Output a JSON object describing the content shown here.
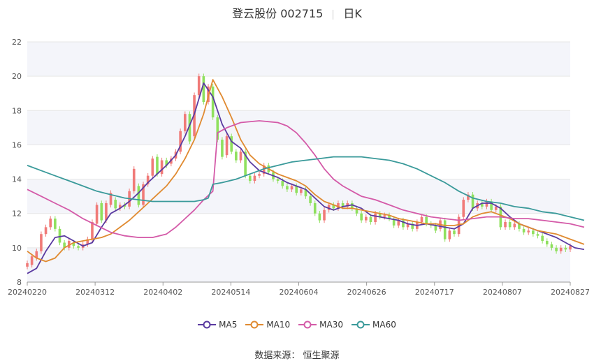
{
  "header": {
    "title": "登云股份 002715",
    "period": "日K"
  },
  "source": "数据来源： 恒生聚源",
  "chart_data": {
    "type": "candlestick",
    "ylim": [
      8,
      22
    ],
    "yticks": [
      8,
      10,
      12,
      14,
      16,
      18,
      20,
      22
    ],
    "xticks": [
      "20240220",
      "20240312",
      "20240402",
      "20240514",
      "20240604",
      "20240626",
      "20240717",
      "20240807",
      "20240827"
    ],
    "grid": true,
    "legend_position": "bottom-center",
    "colors": {
      "up": "#f07a78",
      "down": "#8fe05e",
      "MA5": "#5a3aa0",
      "MA10": "#e08a30",
      "MA30": "#d45aa8",
      "MA60": "#3a9a9a"
    },
    "candles": [
      {
        "o": 8.9,
        "c": 9.1
      },
      {
        "o": 9.0,
        "c": 9.5
      },
      {
        "o": 9.4,
        "c": 9.8
      },
      {
        "o": 9.8,
        "c": 10.8
      },
      {
        "o": 10.8,
        "c": 11.2
      },
      {
        "o": 11.2,
        "c": 11.7
      },
      {
        "o": 11.7,
        "c": 11.1
      },
      {
        "o": 11.1,
        "c": 10.3
      },
      {
        "o": 10.3,
        "c": 10.0
      },
      {
        "o": 10.0,
        "c": 10.4
      },
      {
        "o": 10.3,
        "c": 10.1
      },
      {
        "o": 10.1,
        "c": 10.0
      },
      {
        "o": 10.0,
        "c": 10.2
      },
      {
        "o": 10.2,
        "c": 10.5
      },
      {
        "o": 10.5,
        "c": 11.5
      },
      {
        "o": 11.4,
        "c": 12.5
      },
      {
        "o": 12.6,
        "c": 11.6
      },
      {
        "o": 11.6,
        "c": 12.6
      },
      {
        "o": 12.5,
        "c": 13.2
      },
      {
        "o": 12.8,
        "c": 12.3
      },
      {
        "o": 12.3,
        "c": 12.5
      },
      {
        "o": 12.5,
        "c": 12.4
      },
      {
        "o": 12.4,
        "c": 13.3
      },
      {
        "o": 13.3,
        "c": 14.6
      },
      {
        "o": 13.6,
        "c": 12.5
      },
      {
        "o": 12.5,
        "c": 13.7
      },
      {
        "o": 13.7,
        "c": 14.2
      },
      {
        "o": 14.2,
        "c": 15.2
      },
      {
        "o": 15.3,
        "c": 14.3
      },
      {
        "o": 14.3,
        "c": 15.1
      },
      {
        "o": 15.1,
        "c": 14.8
      },
      {
        "o": 14.9,
        "c": 15.2
      },
      {
        "o": 15.2,
        "c": 15.6
      },
      {
        "o": 15.6,
        "c": 16.8
      },
      {
        "o": 16.8,
        "c": 17.8
      },
      {
        "o": 17.8,
        "c": 16.2
      },
      {
        "o": 16.5,
        "c": 18.9
      },
      {
        "o": 18.9,
        "c": 20.0
      },
      {
        "o": 20.0,
        "c": 18.5
      },
      {
        "o": 18.5,
        "c": 19.4
      },
      {
        "o": 19.4,
        "c": 17.6
      },
      {
        "o": 17.6,
        "c": 16.3
      },
      {
        "o": 16.3,
        "c": 15.3
      },
      {
        "o": 15.4,
        "c": 16.5
      },
      {
        "o": 16.5,
        "c": 15.6
      },
      {
        "o": 15.6,
        "c": 15.1
      },
      {
        "o": 15.1,
        "c": 15.6
      },
      {
        "o": 15.6,
        "c": 14.2
      },
      {
        "o": 14.2,
        "c": 13.9
      },
      {
        "o": 13.9,
        "c": 14.2
      },
      {
        "o": 14.2,
        "c": 14.3
      },
      {
        "o": 14.3,
        "c": 14.8
      },
      {
        "o": 14.8,
        "c": 14.4
      },
      {
        "o": 14.4,
        "c": 14.0
      },
      {
        "o": 14.0,
        "c": 13.9
      },
      {
        "o": 13.9,
        "c": 13.6
      },
      {
        "o": 13.6,
        "c": 13.4
      },
      {
        "o": 13.4,
        "c": 13.6
      },
      {
        "o": 13.6,
        "c": 13.2
      },
      {
        "o": 13.2,
        "c": 13.4
      },
      {
        "o": 13.4,
        "c": 13.0
      },
      {
        "o": 13.0,
        "c": 12.6
      },
      {
        "o": 12.6,
        "c": 12.0
      },
      {
        "o": 12.0,
        "c": 11.6
      },
      {
        "o": 11.6,
        "c": 12.2
      },
      {
        "o": 12.2,
        "c": 12.5
      },
      {
        "o": 12.5,
        "c": 12.3
      },
      {
        "o": 12.3,
        "c": 12.6
      },
      {
        "o": 12.6,
        "c": 12.4
      },
      {
        "o": 12.4,
        "c": 12.6
      },
      {
        "o": 12.6,
        "c": 12.3
      },
      {
        "o": 12.3,
        "c": 12.0
      },
      {
        "o": 12.0,
        "c": 11.6
      },
      {
        "o": 11.6,
        "c": 11.8
      },
      {
        "o": 11.8,
        "c": 11.5
      },
      {
        "o": 11.5,
        "c": 12.0
      },
      {
        "o": 12.0,
        "c": 11.8
      },
      {
        "o": 11.8,
        "c": 11.9
      },
      {
        "o": 11.9,
        "c": 11.7
      },
      {
        "o": 11.7,
        "c": 11.3
      },
      {
        "o": 11.3,
        "c": 11.6
      },
      {
        "o": 11.6,
        "c": 11.2
      },
      {
        "o": 11.2,
        "c": 11.4
      },
      {
        "o": 11.4,
        "c": 11.1
      },
      {
        "o": 11.1,
        "c": 11.5
      },
      {
        "o": 11.5,
        "c": 11.8
      },
      {
        "o": 11.8,
        "c": 11.4
      },
      {
        "o": 11.4,
        "c": 11.3
      },
      {
        "o": 11.3,
        "c": 11.0
      },
      {
        "o": 11.1,
        "c": 11.6
      },
      {
        "o": 11.6,
        "c": 10.5
      },
      {
        "o": 10.5,
        "c": 11.0
      },
      {
        "o": 11.0,
        "c": 10.8
      },
      {
        "o": 10.8,
        "c": 11.8
      },
      {
        "o": 11.8,
        "c": 12.8
      },
      {
        "o": 12.8,
        "c": 13.1
      },
      {
        "o": 13.1,
        "c": 12.3
      },
      {
        "o": 12.3,
        "c": 12.6
      },
      {
        "o": 12.6,
        "c": 12.4
      },
      {
        "o": 12.4,
        "c": 12.7
      },
      {
        "o": 12.7,
        "c": 12.2
      },
      {
        "o": 12.2,
        "c": 12.4
      },
      {
        "o": 12.4,
        "c": 11.2
      },
      {
        "o": 11.2,
        "c": 11.5
      },
      {
        "o": 11.5,
        "c": 11.2
      },
      {
        "o": 11.2,
        "c": 11.4
      },
      {
        "o": 11.4,
        "c": 11.1
      },
      {
        "o": 11.1,
        "c": 10.9
      },
      {
        "o": 10.9,
        "c": 11.0
      },
      {
        "o": 11.0,
        "c": 10.8
      },
      {
        "o": 10.8,
        "c": 10.7
      },
      {
        "o": 10.7,
        "c": 10.4
      },
      {
        "o": 10.4,
        "c": 10.2
      },
      {
        "o": 10.2,
        "c": 10.0
      },
      {
        "o": 10.0,
        "c": 9.8
      },
      {
        "o": 9.8,
        "c": 10.0
      },
      {
        "o": 10.0,
        "c": 9.9
      },
      {
        "o": 9.9,
        "c": 10.1
      }
    ],
    "series": [
      {
        "name": "MA5",
        "points": [
          [
            0,
            8.5
          ],
          [
            2,
            8.8
          ],
          [
            4,
            9.8
          ],
          [
            6,
            10.6
          ],
          [
            8,
            10.7
          ],
          [
            10,
            10.4
          ],
          [
            12,
            10.1
          ],
          [
            14,
            10.3
          ],
          [
            16,
            11.2
          ],
          [
            18,
            12.0
          ],
          [
            20,
            12.3
          ],
          [
            22,
            12.7
          ],
          [
            24,
            13.2
          ],
          [
            26,
            13.8
          ],
          [
            28,
            14.3
          ],
          [
            30,
            14.8
          ],
          [
            32,
            15.4
          ],
          [
            34,
            16.5
          ],
          [
            36,
            17.8
          ],
          [
            38,
            19.6
          ],
          [
            40,
            18.8
          ],
          [
            42,
            17.2
          ],
          [
            44,
            16.2
          ],
          [
            46,
            15.8
          ],
          [
            48,
            15.0
          ],
          [
            50,
            14.5
          ],
          [
            52,
            14.3
          ],
          [
            54,
            14.1
          ],
          [
            56,
            13.8
          ],
          [
            58,
            13.6
          ],
          [
            60,
            13.4
          ],
          [
            62,
            12.9
          ],
          [
            64,
            12.4
          ],
          [
            66,
            12.2
          ],
          [
            68,
            12.4
          ],
          [
            70,
            12.5
          ],
          [
            72,
            12.3
          ],
          [
            74,
            11.9
          ],
          [
            76,
            11.8
          ],
          [
            78,
            11.7
          ],
          [
            80,
            11.6
          ],
          [
            82,
            11.4
          ],
          [
            84,
            11.3
          ],
          [
            86,
            11.4
          ],
          [
            88,
            11.3
          ],
          [
            90,
            11.2
          ],
          [
            92,
            11.1
          ],
          [
            94,
            11.4
          ],
          [
            96,
            12.3
          ],
          [
            98,
            12.6
          ],
          [
            100,
            12.6
          ],
          [
            102,
            12.3
          ],
          [
            104,
            11.8
          ],
          [
            106,
            11.4
          ],
          [
            108,
            11.2
          ],
          [
            110,
            11.0
          ],
          [
            112,
            10.8
          ],
          [
            114,
            10.6
          ],
          [
            116,
            10.3
          ],
          [
            118,
            10.0
          ],
          [
            120,
            9.9
          ]
        ]
      },
      {
        "name": "MA10",
        "points": [
          [
            0,
            9.8
          ],
          [
            2,
            9.4
          ],
          [
            4,
            9.2
          ],
          [
            6,
            9.4
          ],
          [
            8,
            10.0
          ],
          [
            10,
            10.3
          ],
          [
            12,
            10.4
          ],
          [
            14,
            10.5
          ],
          [
            16,
            10.6
          ],
          [
            18,
            10.8
          ],
          [
            20,
            11.2
          ],
          [
            22,
            11.6
          ],
          [
            24,
            12.1
          ],
          [
            26,
            12.6
          ],
          [
            28,
            13.1
          ],
          [
            30,
            13.6
          ],
          [
            32,
            14.3
          ],
          [
            34,
            15.2
          ],
          [
            36,
            16.3
          ],
          [
            38,
            17.8
          ],
          [
            40,
            19.8
          ],
          [
            42,
            18.8
          ],
          [
            44,
            17.6
          ],
          [
            46,
            16.3
          ],
          [
            48,
            15.4
          ],
          [
            50,
            14.9
          ],
          [
            52,
            14.6
          ],
          [
            54,
            14.3
          ],
          [
            56,
            14.1
          ],
          [
            58,
            13.9
          ],
          [
            60,
            13.6
          ],
          [
            62,
            13.1
          ],
          [
            64,
            12.7
          ],
          [
            66,
            12.5
          ],
          [
            68,
            12.3
          ],
          [
            70,
            12.3
          ],
          [
            72,
            12.2
          ],
          [
            74,
            12.1
          ],
          [
            76,
            12.0
          ],
          [
            78,
            11.9
          ],
          [
            80,
            11.7
          ],
          [
            82,
            11.6
          ],
          [
            84,
            11.5
          ],
          [
            86,
            11.4
          ],
          [
            88,
            11.4
          ],
          [
            90,
            11.3
          ],
          [
            92,
            11.3
          ],
          [
            94,
            11.4
          ],
          [
            96,
            11.8
          ],
          [
            98,
            12.0
          ],
          [
            100,
            12.1
          ],
          [
            102,
            11.9
          ],
          [
            104,
            11.7
          ],
          [
            106,
            11.4
          ],
          [
            108,
            11.2
          ],
          [
            110,
            11.0
          ],
          [
            112,
            10.9
          ],
          [
            114,
            10.8
          ],
          [
            116,
            10.6
          ],
          [
            118,
            10.4
          ],
          [
            120,
            10.2
          ]
        ]
      },
      {
        "name": "MA30",
        "points": [
          [
            0,
            13.4
          ],
          [
            3,
            13.0
          ],
          [
            6,
            12.6
          ],
          [
            9,
            12.2
          ],
          [
            12,
            11.7
          ],
          [
            15,
            11.3
          ],
          [
            18,
            10.9
          ],
          [
            21,
            10.7
          ],
          [
            24,
            10.6
          ],
          [
            27,
            10.6
          ],
          [
            30,
            10.8
          ],
          [
            32,
            11.2
          ],
          [
            34,
            11.7
          ],
          [
            36,
            12.2
          ],
          [
            38,
            12.8
          ],
          [
            40,
            13.3
          ],
          [
            41,
            16.7
          ],
          [
            43,
            17.0
          ],
          [
            46,
            17.3
          ],
          [
            50,
            17.4
          ],
          [
            54,
            17.3
          ],
          [
            56,
            17.1
          ],
          [
            58,
            16.7
          ],
          [
            60,
            16.1
          ],
          [
            62,
            15.4
          ],
          [
            64,
            14.6
          ],
          [
            66,
            14.0
          ],
          [
            68,
            13.6
          ],
          [
            70,
            13.3
          ],
          [
            72,
            13.0
          ],
          [
            75,
            12.8
          ],
          [
            78,
            12.5
          ],
          [
            81,
            12.2
          ],
          [
            84,
            12.0
          ],
          [
            87,
            11.8
          ],
          [
            90,
            11.7
          ],
          [
            93,
            11.6
          ],
          [
            96,
            11.7
          ],
          [
            99,
            11.8
          ],
          [
            102,
            11.8
          ],
          [
            105,
            11.7
          ],
          [
            108,
            11.7
          ],
          [
            111,
            11.6
          ],
          [
            114,
            11.5
          ],
          [
            117,
            11.4
          ],
          [
            120,
            11.2
          ]
        ]
      },
      {
        "name": "MA60",
        "points": [
          [
            0,
            14.8
          ],
          [
            3,
            14.5
          ],
          [
            6,
            14.2
          ],
          [
            9,
            13.9
          ],
          [
            12,
            13.6
          ],
          [
            15,
            13.3
          ],
          [
            18,
            13.1
          ],
          [
            21,
            12.9
          ],
          [
            24,
            12.8
          ],
          [
            27,
            12.7
          ],
          [
            30,
            12.7
          ],
          [
            33,
            12.7
          ],
          [
            36,
            12.7
          ],
          [
            38,
            12.8
          ],
          [
            39,
            12.9
          ],
          [
            40,
            13.7
          ],
          [
            42,
            13.8
          ],
          [
            45,
            14.0
          ],
          [
            48,
            14.3
          ],
          [
            51,
            14.6
          ],
          [
            54,
            14.8
          ],
          [
            57,
            15.0
          ],
          [
            60,
            15.1
          ],
          [
            63,
            15.2
          ],
          [
            66,
            15.3
          ],
          [
            69,
            15.3
          ],
          [
            72,
            15.3
          ],
          [
            75,
            15.2
          ],
          [
            78,
            15.1
          ],
          [
            81,
            14.9
          ],
          [
            84,
            14.6
          ],
          [
            87,
            14.2
          ],
          [
            90,
            13.8
          ],
          [
            93,
            13.3
          ],
          [
            96,
            12.9
          ],
          [
            99,
            12.7
          ],
          [
            102,
            12.6
          ],
          [
            105,
            12.4
          ],
          [
            108,
            12.3
          ],
          [
            111,
            12.1
          ],
          [
            114,
            12.0
          ],
          [
            117,
            11.8
          ],
          [
            120,
            11.6
          ]
        ]
      }
    ]
  }
}
